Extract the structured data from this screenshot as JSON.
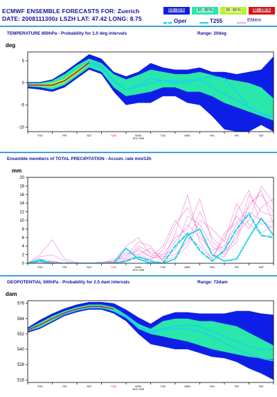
{
  "header": {
    "line1": "ECMWF ENSEMBLE FORECASTS FOR:  Zuerich",
    "line2": "DATE: 2008111300z  LSZH  LAT: 47.42  LONG: 8.75"
  },
  "legend": {
    "bins": [
      {
        "label": "0.6 - 10 %",
        "color": "#0d1fe6"
      },
      {
        "label": "10 - 30 %",
        "color": "#29e8a9"
      },
      {
        "label": "30 - 60 %",
        "color": "#b9f12e"
      },
      {
        "label": "60 - 100 %",
        "color": "#e01010"
      }
    ],
    "lines": [
      {
        "label": "Oper",
        "color": "#1fd2e8",
        "style": "dashed"
      },
      {
        "label": "T255",
        "color": "#1fd2e8",
        "style": "solid"
      },
      {
        "label": "EMem",
        "color": "#e866c8",
        "style": "solid"
      }
    ]
  },
  "chart_data": [
    {
      "type": "area",
      "title": "TEMPERATURE 850hPa - Probability for 1.0 deg intervals",
      "range_label": "Range: 20deg",
      "ylabel": "deg",
      "ylim": [
        -11,
        7
      ],
      "yticks": [
        -10,
        -5,
        0,
        5
      ],
      "xlim": [
        0,
        10
      ],
      "days": [
        "THU",
        "FRI",
        "SAT",
        "SUN",
        "MON",
        "TUE",
        "WED",
        "THU",
        "FRI",
        "SAT"
      ],
      "date_label": "NOV 2008",
      "date_label_day": "MON",
      "x": [
        0,
        0.5,
        1,
        1.5,
        2,
        2.5,
        3,
        3.5,
        4,
        4.5,
        5,
        5.5,
        6,
        6.5,
        7,
        7.5,
        8,
        8.5,
        9,
        9.5,
        10
      ],
      "envelope_outer_upper": [
        0.2,
        0.2,
        0.8,
        2.5,
        4.5,
        6.5,
        5.5,
        2.5,
        1.5,
        2.5,
        4.5,
        3.5,
        3.0,
        3.0,
        3.5,
        2.5,
        2.5,
        2.0,
        2.5,
        3.0,
        6.0
      ],
      "envelope_outer_lower": [
        -1.2,
        -1.5,
        -2.0,
        -1.0,
        1.0,
        3.0,
        2.0,
        -2.0,
        -5.0,
        -4.5,
        -4.5,
        -3.0,
        -3.0,
        -4.5,
        -5.0,
        -7.5,
        -10.5,
        -11.0,
        -11.0,
        -9.5,
        -11.0
      ],
      "envelope_mid_upper": [
        0.0,
        0.0,
        0.5,
        2.0,
        4.0,
        5.5,
        4.5,
        2.0,
        0.8,
        1.8,
        3.0,
        2.5,
        2.0,
        2.0,
        2.5,
        1.8,
        1.0,
        0.5,
        0.0,
        -1.0,
        -3.5
      ],
      "envelope_mid_lower": [
        -0.8,
        -1.0,
        -1.5,
        -0.5,
        1.5,
        3.5,
        2.5,
        -1.0,
        -3.0,
        -2.5,
        -2.0,
        -1.0,
        -1.0,
        -2.0,
        -2.0,
        -3.0,
        -4.5,
        -5.5,
        -6.5,
        -7.5,
        -8.5
      ],
      "envelope_core_upper": [
        -0.2,
        -0.2,
        0.0,
        1.0,
        3.0,
        5.0,
        null,
        null,
        null,
        null,
        null,
        null,
        null,
        null,
        null,
        null,
        null,
        null,
        null,
        null,
        null
      ],
      "envelope_core_lower": [
        -0.7,
        -0.8,
        -1.0,
        0.0,
        2.0,
        4.2,
        null,
        null,
        null,
        null,
        null,
        null,
        null,
        null,
        null,
        null,
        null,
        null,
        null,
        null,
        null
      ],
      "series": [
        {
          "name": "Oper",
          "values": [
            -0.5,
            -0.5,
            -0.6,
            0.5,
            2.5,
            4.8,
            3.8,
            0.5,
            -1.5,
            -0.5,
            1.0,
            0.5,
            0.0,
            0.0,
            1.0,
            1.5,
            1.0,
            -2.0,
            -5.5,
            -7.0,
            -7.5
          ]
        },
        {
          "name": "T255",
          "values": [
            -0.5,
            -0.5,
            -0.5,
            0.5,
            2.5,
            4.5,
            3.5,
            0.2,
            -1.5,
            -0.8,
            0.0,
            0.5,
            0.5,
            0.5,
            0.8,
            -1.0,
            -2.5,
            -4.0,
            -5.5,
            -7.0,
            -7.8
          ]
        }
      ]
    },
    {
      "type": "line",
      "title": "Ensemble members of TOTAL PRECIPITATION - Accum. rate mm/12h",
      "ylabel": "mm",
      "ylim": [
        0,
        20
      ],
      "yticks": [
        0,
        2,
        4,
        6,
        8,
        10,
        12,
        14,
        16,
        18,
        20
      ],
      "xlim": [
        0,
        10
      ],
      "days": [
        "THU",
        "FRI",
        "SAT",
        "SUN",
        "MON",
        "TUE",
        "WED",
        "THU",
        "FRI",
        "SAT"
      ],
      "date_label": "NOV 2008",
      "date_label_day": "MON",
      "x": [
        0,
        0.5,
        1,
        1.5,
        2,
        2.5,
        3,
        3.5,
        4,
        4.5,
        5,
        5.5,
        6,
        6.5,
        7,
        7.5,
        8,
        8.5,
        9,
        9.5,
        10
      ],
      "series": [
        {
          "name": "Oper",
          "values": [
            0,
            0.5,
            0,
            0,
            0,
            0,
            0,
            0,
            0.5,
            1.5,
            0.5,
            0,
            4.0,
            7.0,
            3.0,
            0.5,
            3.0,
            8.0,
            11.5,
            6.5,
            6.0
          ]
        },
        {
          "name": "T255",
          "values": [
            0,
            0.8,
            0,
            0,
            0,
            0,
            0,
            0,
            3.5,
            1.0,
            0,
            0,
            1.0,
            6.5,
            8.0,
            2.0,
            0.5,
            1.0,
            6.0,
            10.5,
            6.5
          ]
        },
        {
          "name": "EMem",
          "values": [
            0,
            1.0,
            0.5,
            0,
            0,
            0,
            0,
            0.5,
            2.0,
            3.0,
            1.5,
            1.0,
            5.0,
            9.0,
            6.0,
            3.0,
            4.0,
            9.0,
            12.0,
            10.0,
            8.0
          ]
        },
        {
          "name": "EMem",
          "values": [
            0,
            0.5,
            0,
            0,
            0,
            0,
            0,
            1.0,
            1.0,
            4.0,
            2.5,
            2.0,
            3.0,
            11.0,
            9.0,
            4.0,
            2.0,
            5.0,
            14.0,
            16.0,
            12.0
          ]
        },
        {
          "name": "EMem",
          "values": [
            0,
            2.0,
            5.5,
            1.0,
            0.2,
            0,
            0,
            0,
            0.5,
            2.0,
            3.5,
            0.5,
            7.0,
            16.0,
            5.0,
            1.0,
            6.0,
            11.0,
            8.0,
            13.0,
            15.0
          ]
        },
        {
          "name": "EMem",
          "values": [
            0,
            0.3,
            0.5,
            0,
            0,
            0,
            0.3,
            0.5,
            4.0,
            6.0,
            2.0,
            1.5,
            2.0,
            5.0,
            12.0,
            6.0,
            3.0,
            12.0,
            17.0,
            9.0,
            10.0
          ]
        },
        {
          "name": "EMem",
          "values": [
            0,
            0,
            0,
            0,
            0,
            0,
            0,
            0,
            0.8,
            1.5,
            0.8,
            3.0,
            9.0,
            13.0,
            7.0,
            2.0,
            1.5,
            7.0,
            10.0,
            18.0,
            14.0
          ]
        },
        {
          "name": "EMem",
          "values": [
            0,
            1.5,
            2.0,
            0.5,
            0,
            0,
            0,
            0.2,
            1.5,
            5.0,
            4.0,
            0.5,
            1.5,
            4.0,
            10.0,
            8.0,
            5.0,
            14.0,
            9.0,
            7.0,
            9.0
          ]
        },
        {
          "name": "EMem",
          "values": [
            0,
            0,
            0.3,
            0,
            0,
            0,
            0,
            0.3,
            2.5,
            2.0,
            1.0,
            2.0,
            6.0,
            8.0,
            15.0,
            5.0,
            2.5,
            6.0,
            16.0,
            12.0,
            11.0
          ]
        },
        {
          "name": "EMem",
          "values": [
            0,
            0.8,
            0,
            0,
            0,
            0,
            0,
            0,
            0.3,
            3.5,
            1.5,
            4.0,
            10.0,
            6.0,
            4.0,
            1.0,
            7.0,
            9.5,
            13.0,
            17.0,
            9.0
          ]
        }
      ]
    },
    {
      "type": "area",
      "title": "GEOPOTENTIAL 500hPa - Probability for 2.5 dam intervals",
      "range_label": "Range: 72dam",
      "ylabel": "dam",
      "ylim": [
        514,
        578
      ],
      "yticks": [
        516,
        528,
        540,
        552,
        564,
        576
      ],
      "xlim": [
        0,
        10
      ],
      "days": [
        "THU",
        "FRI",
        "SAT",
        "SUN",
        "MON",
        "TUE",
        "WED",
        "THU",
        "FRI",
        "SAT"
      ],
      "date_label": "NOV 2008",
      "date_label_day": "MON",
      "x": [
        0,
        0.5,
        1,
        1.5,
        2,
        2.5,
        3,
        3.5,
        4,
        4.5,
        5,
        5.5,
        6,
        6.5,
        7,
        7.5,
        8,
        8.5,
        9,
        9.5,
        10
      ],
      "envelope_outer_upper": [
        557,
        563,
        568,
        572,
        575,
        577,
        577,
        576,
        571,
        565,
        560,
        566,
        569,
        569,
        568,
        568,
        568,
        570,
        570,
        568,
        567
      ],
      "envelope_outer_lower": [
        553,
        556,
        561,
        566,
        569,
        571,
        571,
        568,
        562,
        552,
        544,
        542,
        540,
        540,
        537,
        534,
        533,
        530,
        525,
        521,
        516
      ],
      "envelope_mid_upper": [
        556,
        561,
        566,
        570,
        573,
        575,
        575,
        573,
        567,
        560,
        556,
        562,
        564,
        564,
        562,
        562,
        560,
        558,
        553,
        548,
        543
      ],
      "envelope_mid_lower": [
        554,
        557,
        562,
        567,
        570,
        572,
        572,
        570,
        565,
        556,
        552,
        550,
        548,
        546,
        543,
        540,
        538,
        536,
        534,
        533,
        532
      ],
      "envelope_core_upper": [
        555.5,
        560,
        565,
        569,
        572,
        574,
        574,
        572,
        null,
        null,
        null,
        null,
        null,
        null,
        null,
        null,
        null,
        null,
        null,
        null,
        null
      ],
      "envelope_core_lower": [
        554.5,
        558,
        563,
        568,
        571,
        573,
        573,
        571,
        null,
        null,
        null,
        null,
        null,
        null,
        null,
        null,
        null,
        null,
        null,
        null,
        null
      ],
      "series": [
        {
          "name": "Oper",
          "values": [
            555,
            559,
            564,
            568,
            571,
            573,
            573,
            570,
            566,
            558,
            554,
            556,
            558,
            559,
            558,
            554,
            550,
            546,
            542,
            540,
            540
          ]
        },
        {
          "name": "T255",
          "values": [
            555,
            559,
            564,
            568,
            571,
            573,
            573,
            570,
            565,
            557,
            553,
            555,
            556,
            556,
            554,
            550,
            545,
            540,
            536,
            533,
            531
          ]
        }
      ]
    }
  ]
}
